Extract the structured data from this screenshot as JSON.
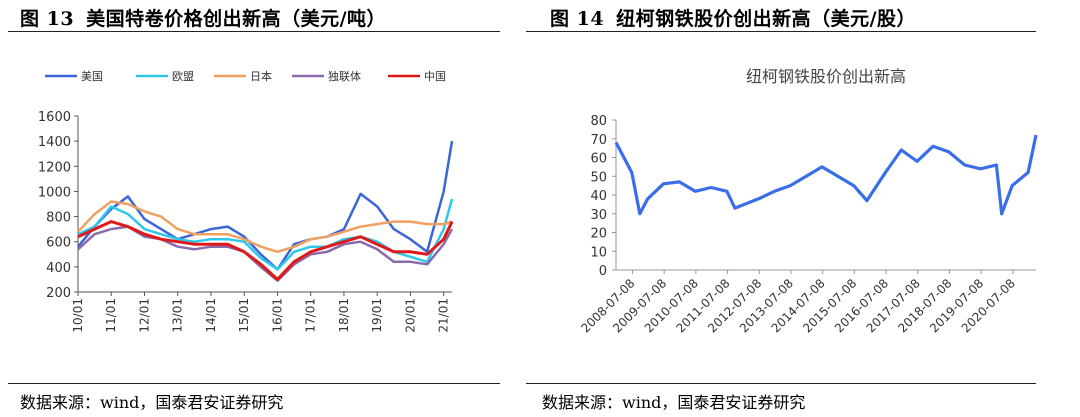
{
  "left_panel": {
    "figure_number": "图 13",
    "figure_title": "美国特卷价格创出新高（美元/吨）",
    "source": "数据来源：wind，国泰君安证券研究"
  },
  "right_panel": {
    "figure_number": "图 14",
    "figure_title": "纽柯钢铁股价创出新高（美元/股）",
    "source": "数据来源：wind，国泰君安证券研究"
  },
  "colors": {
    "us": "#3a66d8",
    "eu": "#2ec8ec",
    "japan": "#f0a060",
    "cis": "#8a6aaa",
    "china": "#e01818",
    "nucor": "#3a6ee8",
    "axis": "#555555",
    "text": "#333333"
  },
  "chart_data": [
    {
      "type": "line",
      "title": "",
      "xlabel": "",
      "ylabel": "",
      "ylim": [
        200,
        1600
      ],
      "yticks": [
        200,
        400,
        600,
        800,
        1000,
        1200,
        1400,
        1600
      ],
      "xticks": [
        "10/01",
        "11/01",
        "12/01",
        "13/01",
        "14/01",
        "15/01",
        "16/01",
        "17/01",
        "18/01",
        "19/01",
        "20/01",
        "21/01"
      ],
      "grid": false,
      "legend_position": "top",
      "x": [
        "10/01",
        "10/07",
        "11/01",
        "11/07",
        "12/01",
        "12/07",
        "13/01",
        "13/07",
        "14/01",
        "14/07",
        "15/01",
        "15/07",
        "16/01",
        "16/07",
        "17/01",
        "17/07",
        "18/01",
        "18/07",
        "19/01",
        "19/07",
        "20/01",
        "20/07",
        "21/01",
        "21/04"
      ],
      "series": [
        {
          "name": "美国",
          "color_key": "us",
          "values": [
            560,
            720,
            860,
            960,
            780,
            700,
            620,
            660,
            700,
            720,
            640,
            500,
            380,
            580,
            620,
            640,
            700,
            980,
            880,
            700,
            620,
            520,
            1000,
            1400
          ]
        },
        {
          "name": "欧盟",
          "color_key": "eu",
          "values": [
            660,
            720,
            880,
            820,
            700,
            660,
            620,
            600,
            620,
            620,
            600,
            470,
            380,
            520,
            560,
            560,
            620,
            640,
            600,
            520,
            480,
            440,
            700,
            940
          ]
        },
        {
          "name": "日本",
          "color_key": "japan",
          "values": [
            680,
            820,
            920,
            900,
            840,
            800,
            700,
            660,
            660,
            660,
            620,
            560,
            520,
            560,
            620,
            640,
            680,
            720,
            740,
            760,
            760,
            740,
            740,
            760
          ]
        },
        {
          "name": "独联体",
          "color_key": "cis",
          "values": [
            540,
            660,
            700,
            720,
            640,
            620,
            560,
            540,
            560,
            560,
            520,
            400,
            290,
            420,
            500,
            520,
            580,
            600,
            540,
            440,
            440,
            420,
            580,
            700
          ]
        },
        {
          "name": "中国",
          "color_key": "china",
          "values": [
            640,
            700,
            760,
            720,
            660,
            620,
            600,
            580,
            580,
            580,
            520,
            420,
            300,
            440,
            520,
            560,
            600,
            640,
            580,
            520,
            520,
            500,
            620,
            760
          ]
        }
      ]
    },
    {
      "type": "line",
      "title": "纽柯钢铁股价创出新高",
      "xlabel": "",
      "ylabel": "",
      "ylim": [
        0,
        80
      ],
      "yticks": [
        0,
        10,
        20,
        30,
        40,
        50,
        60,
        70,
        80
      ],
      "xticks": [
        "2008-07-08",
        "2009-07-08",
        "2010-07-08",
        "2011-07-08",
        "2012-07-08",
        "2013-07-08",
        "2014-07-08",
        "2015-07-08",
        "2016-07-08",
        "2017-07-08",
        "2018-07-08",
        "2019-07-08",
        "2020-07-08"
      ],
      "grid": false,
      "legend_position": "none",
      "x": [
        "2008-01",
        "2008-07",
        "2008-10",
        "2009-01",
        "2009-07",
        "2010-01",
        "2010-07",
        "2011-01",
        "2011-07",
        "2011-10",
        "2012-07",
        "2013-01",
        "2013-07",
        "2014-01",
        "2014-07",
        "2015-01",
        "2015-07",
        "2015-12",
        "2016-07",
        "2017-01",
        "2017-07",
        "2018-01",
        "2018-07",
        "2019-01",
        "2019-07",
        "2020-01",
        "2020-03",
        "2020-07",
        "2021-01",
        "2021-04"
      ],
      "series": [
        {
          "name": "",
          "color_key": "nucor",
          "values": [
            68,
            52,
            30,
            38,
            46,
            47,
            42,
            44,
            42,
            33,
            38,
            42,
            45,
            50,
            55,
            50,
            45,
            37,
            52,
            64,
            58,
            66,
            63,
            56,
            54,
            56,
            30,
            45,
            52,
            72
          ]
        }
      ]
    }
  ]
}
